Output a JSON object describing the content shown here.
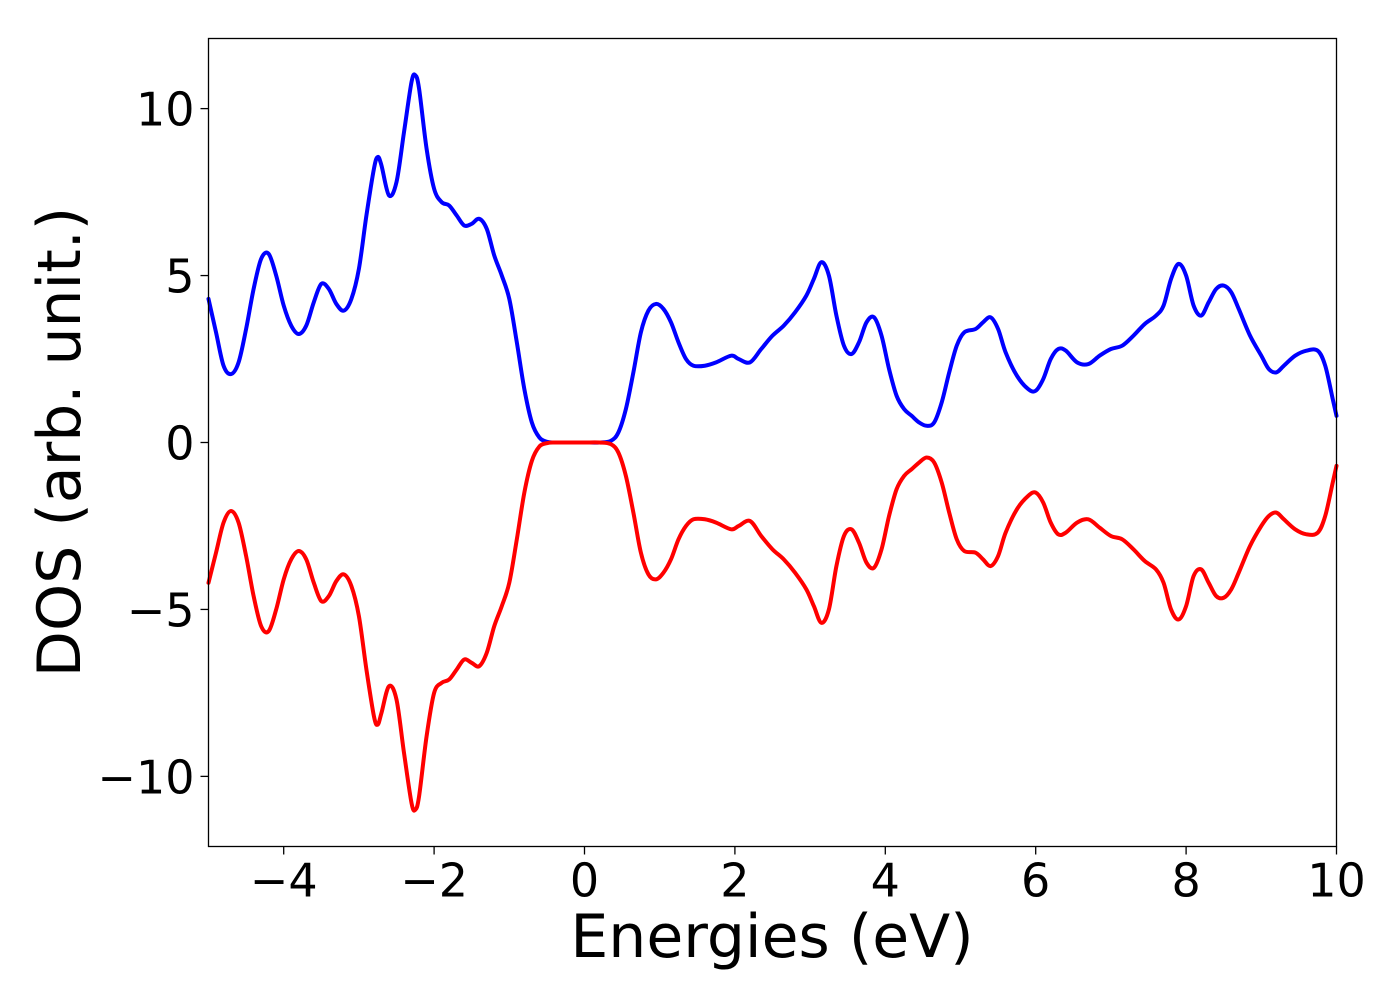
{
  "chart_data": {
    "type": "line",
    "title": "",
    "xlabel": "Energies (eV)",
    "ylabel": "DOS (arb. unit.)",
    "xlim": [
      -5,
      10
    ],
    "ylim": [
      -12.1,
      12.1
    ],
    "grid": false,
    "x_ticks": [
      {
        "value": -4,
        "label": "−4"
      },
      {
        "value": -2,
        "label": "−2"
      },
      {
        "value": 0,
        "label": "0"
      },
      {
        "value": 2,
        "label": "2"
      },
      {
        "value": 4,
        "label": "4"
      },
      {
        "value": 6,
        "label": "6"
      },
      {
        "value": 8,
        "label": "8"
      },
      {
        "value": 10,
        "label": "10"
      }
    ],
    "y_ticks": [
      {
        "value": -10,
        "label": "−10"
      },
      {
        "value": -5,
        "label": "−5"
      },
      {
        "value": 0,
        "label": "0"
      },
      {
        "value": 5,
        "label": "5"
      },
      {
        "value": 10,
        "label": "10"
      }
    ],
    "series": [
      {
        "color": "#0000ff",
        "points": [
          [
            -5.0,
            4.3
          ],
          [
            -4.9,
            3.3
          ],
          [
            -4.8,
            2.3
          ],
          [
            -4.7,
            2.05
          ],
          [
            -4.6,
            2.4
          ],
          [
            -4.5,
            3.4
          ],
          [
            -4.4,
            4.6
          ],
          [
            -4.3,
            5.5
          ],
          [
            -4.2,
            5.65
          ],
          [
            -4.1,
            5.0
          ],
          [
            -4.0,
            4.1
          ],
          [
            -3.9,
            3.5
          ],
          [
            -3.8,
            3.25
          ],
          [
            -3.7,
            3.5
          ],
          [
            -3.6,
            4.2
          ],
          [
            -3.5,
            4.75
          ],
          [
            -3.4,
            4.6
          ],
          [
            -3.3,
            4.15
          ],
          [
            -3.2,
            3.95
          ],
          [
            -3.1,
            4.3
          ],
          [
            -3.0,
            5.2
          ],
          [
            -2.9,
            6.8
          ],
          [
            -2.8,
            8.2
          ],
          [
            -2.75,
            8.55
          ],
          [
            -2.7,
            8.3
          ],
          [
            -2.6,
            7.4
          ],
          [
            -2.5,
            7.8
          ],
          [
            -2.4,
            9.3
          ],
          [
            -2.3,
            10.8
          ],
          [
            -2.25,
            11.0
          ],
          [
            -2.2,
            10.6
          ],
          [
            -2.1,
            8.8
          ],
          [
            -2.0,
            7.6
          ],
          [
            -1.9,
            7.2
          ],
          [
            -1.8,
            7.1
          ],
          [
            -1.7,
            6.8
          ],
          [
            -1.6,
            6.5
          ],
          [
            -1.5,
            6.55
          ],
          [
            -1.4,
            6.7
          ],
          [
            -1.3,
            6.4
          ],
          [
            -1.2,
            5.6
          ],
          [
            -1.1,
            5.0
          ],
          [
            -1.0,
            4.3
          ],
          [
            -0.9,
            3.0
          ],
          [
            -0.8,
            1.6
          ],
          [
            -0.7,
            0.6
          ],
          [
            -0.6,
            0.15
          ],
          [
            -0.5,
            0.02
          ],
          [
            -0.4,
            0.0
          ],
          [
            -0.2,
            0.0
          ],
          [
            0.0,
            0.0
          ],
          [
            0.2,
            0.0
          ],
          [
            0.35,
            0.05
          ],
          [
            0.45,
            0.3
          ],
          [
            0.55,
            1.0
          ],
          [
            0.65,
            2.1
          ],
          [
            0.75,
            3.3
          ],
          [
            0.85,
            3.95
          ],
          [
            0.95,
            4.15
          ],
          [
            1.05,
            4.0
          ],
          [
            1.15,
            3.6
          ],
          [
            1.25,
            3.0
          ],
          [
            1.35,
            2.5
          ],
          [
            1.45,
            2.3
          ],
          [
            1.6,
            2.3
          ],
          [
            1.75,
            2.4
          ],
          [
            1.95,
            2.6
          ],
          [
            2.05,
            2.5
          ],
          [
            2.2,
            2.4
          ],
          [
            2.35,
            2.8
          ],
          [
            2.5,
            3.2
          ],
          [
            2.65,
            3.5
          ],
          [
            2.8,
            3.9
          ],
          [
            2.95,
            4.4
          ],
          [
            3.05,
            4.9
          ],
          [
            3.15,
            5.4
          ],
          [
            3.25,
            5.0
          ],
          [
            3.35,
            3.8
          ],
          [
            3.45,
            2.9
          ],
          [
            3.55,
            2.65
          ],
          [
            3.65,
            3.0
          ],
          [
            3.75,
            3.6
          ],
          [
            3.85,
            3.75
          ],
          [
            3.95,
            3.2
          ],
          [
            4.05,
            2.2
          ],
          [
            4.15,
            1.4
          ],
          [
            4.25,
            1.0
          ],
          [
            4.35,
            0.8
          ],
          [
            4.45,
            0.6
          ],
          [
            4.55,
            0.5
          ],
          [
            4.65,
            0.6
          ],
          [
            4.75,
            1.2
          ],
          [
            4.85,
            2.1
          ],
          [
            4.95,
            2.9
          ],
          [
            5.05,
            3.3
          ],
          [
            5.2,
            3.4
          ],
          [
            5.3,
            3.6
          ],
          [
            5.4,
            3.75
          ],
          [
            5.5,
            3.4
          ],
          [
            5.6,
            2.7
          ],
          [
            5.75,
            2.0
          ],
          [
            5.9,
            1.6
          ],
          [
            6.0,
            1.55
          ],
          [
            6.1,
            1.9
          ],
          [
            6.2,
            2.5
          ],
          [
            6.3,
            2.8
          ],
          [
            6.4,
            2.75
          ],
          [
            6.55,
            2.4
          ],
          [
            6.7,
            2.35
          ],
          [
            6.85,
            2.6
          ],
          [
            7.0,
            2.8
          ],
          [
            7.15,
            2.9
          ],
          [
            7.3,
            3.2
          ],
          [
            7.45,
            3.55
          ],
          [
            7.6,
            3.8
          ],
          [
            7.7,
            4.1
          ],
          [
            7.8,
            4.9
          ],
          [
            7.9,
            5.35
          ],
          [
            8.0,
            5.0
          ],
          [
            8.1,
            4.1
          ],
          [
            8.2,
            3.8
          ],
          [
            8.3,
            4.2
          ],
          [
            8.4,
            4.6
          ],
          [
            8.5,
            4.7
          ],
          [
            8.6,
            4.5
          ],
          [
            8.7,
            4.0
          ],
          [
            8.85,
            3.2
          ],
          [
            9.0,
            2.6
          ],
          [
            9.1,
            2.2
          ],
          [
            9.2,
            2.1
          ],
          [
            9.3,
            2.3
          ],
          [
            9.45,
            2.6
          ],
          [
            9.6,
            2.75
          ],
          [
            9.75,
            2.75
          ],
          [
            9.85,
            2.3
          ],
          [
            9.95,
            1.3
          ],
          [
            10.0,
            0.8
          ]
        ]
      },
      {
        "color": "#ff0000",
        "points": [
          [
            -5.0,
            -4.2
          ],
          [
            -4.9,
            -3.3
          ],
          [
            -4.8,
            -2.4
          ],
          [
            -4.7,
            -2.05
          ],
          [
            -4.6,
            -2.4
          ],
          [
            -4.5,
            -3.4
          ],
          [
            -4.4,
            -4.6
          ],
          [
            -4.3,
            -5.5
          ],
          [
            -4.2,
            -5.65
          ],
          [
            -4.1,
            -5.0
          ],
          [
            -4.0,
            -4.1
          ],
          [
            -3.9,
            -3.5
          ],
          [
            -3.8,
            -3.25
          ],
          [
            -3.7,
            -3.5
          ],
          [
            -3.6,
            -4.2
          ],
          [
            -3.5,
            -4.75
          ],
          [
            -3.4,
            -4.6
          ],
          [
            -3.3,
            -4.15
          ],
          [
            -3.2,
            -3.95
          ],
          [
            -3.1,
            -4.3
          ],
          [
            -3.0,
            -5.2
          ],
          [
            -2.9,
            -6.8
          ],
          [
            -2.8,
            -8.2
          ],
          [
            -2.75,
            -8.45
          ],
          [
            -2.7,
            -8.1
          ],
          [
            -2.6,
            -7.3
          ],
          [
            -2.5,
            -7.7
          ],
          [
            -2.4,
            -9.3
          ],
          [
            -2.3,
            -10.8
          ],
          [
            -2.25,
            -11.0
          ],
          [
            -2.2,
            -10.6
          ],
          [
            -2.1,
            -8.8
          ],
          [
            -2.0,
            -7.5
          ],
          [
            -1.9,
            -7.2
          ],
          [
            -1.8,
            -7.1
          ],
          [
            -1.7,
            -6.8
          ],
          [
            -1.6,
            -6.5
          ],
          [
            -1.5,
            -6.6
          ],
          [
            -1.4,
            -6.7
          ],
          [
            -1.3,
            -6.3
          ],
          [
            -1.2,
            -5.5
          ],
          [
            -1.1,
            -4.9
          ],
          [
            -1.0,
            -4.2
          ],
          [
            -0.9,
            -2.9
          ],
          [
            -0.8,
            -1.5
          ],
          [
            -0.7,
            -0.55
          ],
          [
            -0.6,
            -0.12
          ],
          [
            -0.5,
            -0.02
          ],
          [
            -0.4,
            0.0
          ],
          [
            -0.2,
            0.0
          ],
          [
            0.0,
            0.0
          ],
          [
            0.2,
            0.0
          ],
          [
            0.35,
            -0.05
          ],
          [
            0.45,
            -0.3
          ],
          [
            0.55,
            -1.0
          ],
          [
            0.65,
            -2.1
          ],
          [
            0.75,
            -3.3
          ],
          [
            0.85,
            -3.95
          ],
          [
            0.95,
            -4.1
          ],
          [
            1.05,
            -3.9
          ],
          [
            1.15,
            -3.5
          ],
          [
            1.25,
            -2.9
          ],
          [
            1.35,
            -2.5
          ],
          [
            1.45,
            -2.3
          ],
          [
            1.6,
            -2.3
          ],
          [
            1.75,
            -2.4
          ],
          [
            1.95,
            -2.6
          ],
          [
            2.05,
            -2.5
          ],
          [
            2.2,
            -2.35
          ],
          [
            2.35,
            -2.8
          ],
          [
            2.5,
            -3.2
          ],
          [
            2.65,
            -3.5
          ],
          [
            2.8,
            -3.9
          ],
          [
            2.95,
            -4.4
          ],
          [
            3.05,
            -4.9
          ],
          [
            3.15,
            -5.4
          ],
          [
            3.25,
            -5.0
          ],
          [
            3.35,
            -3.7
          ],
          [
            3.45,
            -2.8
          ],
          [
            3.55,
            -2.6
          ],
          [
            3.65,
            -3.0
          ],
          [
            3.75,
            -3.6
          ],
          [
            3.85,
            -3.75
          ],
          [
            3.95,
            -3.2
          ],
          [
            4.05,
            -2.2
          ],
          [
            4.15,
            -1.4
          ],
          [
            4.25,
            -1.0
          ],
          [
            4.35,
            -0.8
          ],
          [
            4.45,
            -0.6
          ],
          [
            4.55,
            -0.45
          ],
          [
            4.65,
            -0.6
          ],
          [
            4.75,
            -1.2
          ],
          [
            4.85,
            -2.1
          ],
          [
            4.95,
            -2.9
          ],
          [
            5.05,
            -3.25
          ],
          [
            5.2,
            -3.3
          ],
          [
            5.3,
            -3.5
          ],
          [
            5.4,
            -3.7
          ],
          [
            5.5,
            -3.4
          ],
          [
            5.6,
            -2.7
          ],
          [
            5.75,
            -2.0
          ],
          [
            5.9,
            -1.6
          ],
          [
            6.0,
            -1.5
          ],
          [
            6.1,
            -1.8
          ],
          [
            6.2,
            -2.4
          ],
          [
            6.3,
            -2.75
          ],
          [
            6.4,
            -2.7
          ],
          [
            6.55,
            -2.4
          ],
          [
            6.7,
            -2.3
          ],
          [
            6.85,
            -2.55
          ],
          [
            7.0,
            -2.8
          ],
          [
            7.15,
            -2.9
          ],
          [
            7.3,
            -3.2
          ],
          [
            7.45,
            -3.55
          ],
          [
            7.6,
            -3.8
          ],
          [
            7.7,
            -4.2
          ],
          [
            7.8,
            -5.0
          ],
          [
            7.9,
            -5.3
          ],
          [
            8.0,
            -4.9
          ],
          [
            8.1,
            -4.0
          ],
          [
            8.2,
            -3.8
          ],
          [
            8.3,
            -4.2
          ],
          [
            8.4,
            -4.6
          ],
          [
            8.5,
            -4.65
          ],
          [
            8.6,
            -4.4
          ],
          [
            8.7,
            -3.9
          ],
          [
            8.85,
            -3.1
          ],
          [
            9.0,
            -2.5
          ],
          [
            9.1,
            -2.2
          ],
          [
            9.2,
            -2.1
          ],
          [
            9.3,
            -2.3
          ],
          [
            9.45,
            -2.6
          ],
          [
            9.6,
            -2.75
          ],
          [
            9.75,
            -2.7
          ],
          [
            9.85,
            -2.2
          ],
          [
            9.95,
            -1.2
          ],
          [
            10.0,
            -0.7
          ]
        ]
      }
    ]
  }
}
